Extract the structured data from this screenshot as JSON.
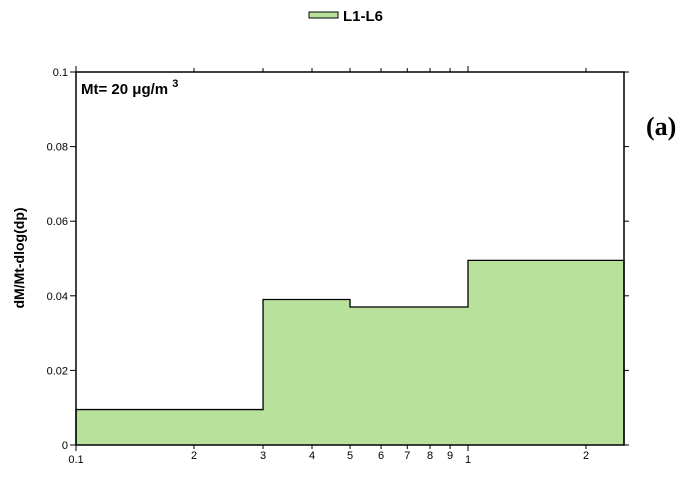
{
  "chart_data": {
    "type": "area",
    "steps": [
      {
        "x_start": 0.1,
        "x_end": 0.3,
        "value": 0.0095
      },
      {
        "x_start": 0.3,
        "x_end": 0.5,
        "value": 0.039
      },
      {
        "x_start": 0.5,
        "x_end": 1.0,
        "value": 0.037
      },
      {
        "x_start": 1.0,
        "x_end": 2.5,
        "value": 0.0495
      }
    ],
    "series": [
      {
        "name": "L1-L6",
        "color": "#b8e29b"
      }
    ],
    "xlim": [
      0.1,
      2.5
    ],
    "x_scale": "log",
    "ylim": [
      0,
      0.1
    ],
    "ylabel": "dM/Mt-dlog(dp)",
    "xlabel": "",
    "yticks": [
      0,
      0.02,
      0.04,
      0.06,
      0.08,
      0.1
    ],
    "ytick_labels": [
      "0",
      "0.02",
      "0.04",
      "0.06",
      "0.08",
      "0.1"
    ],
    "xticks_major": [
      0.1,
      1
    ],
    "xticks_major_labels": [
      "0.1",
      "1"
    ],
    "xticks_minor": [
      0.2,
      0.3,
      0.4,
      0.5,
      0.6,
      0.7,
      0.8,
      0.9,
      2
    ],
    "xticks_minor_labels": [
      "2",
      "3",
      "4",
      "5",
      "6",
      "7",
      "8",
      "9",
      "2"
    ],
    "annotation": {
      "prefix": "Mt= 20 μg/m",
      "superscript": "3"
    },
    "panel_label": "(a)",
    "legend_position": "top-center",
    "grid": false
  }
}
